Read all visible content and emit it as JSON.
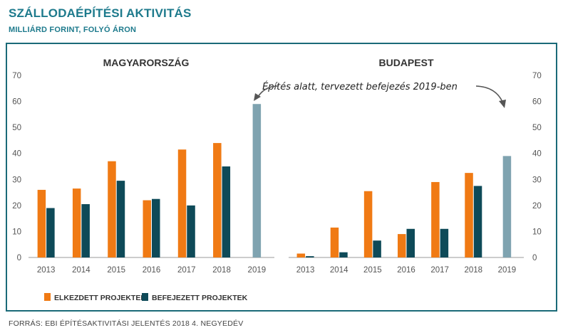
{
  "header": {
    "title": "SZÁLLODAÉPÍTÉSI AKTIVITÁS",
    "subtitle": "MILLIÁRD FORINT, FOLYÓ ÁRON"
  },
  "source": "FORRÁS: EBI ÉPÍTÉSAKTIVITÁSI JELENTÉS 2018 4. NEGYEDÉV",
  "annotation": "Építés alatt, tervezett befejezés 2019-ben",
  "colors": {
    "started": "#f07a14",
    "completed": "#0e4a58",
    "planned": "#7fa3b0",
    "accent": "#1d7a8c"
  },
  "chart_data": [
    {
      "type": "bar",
      "title": "MAGYARORSZÁG",
      "categories": [
        "2013",
        "2014",
        "2015",
        "2016",
        "2017",
        "2018",
        "2019"
      ],
      "ylim": [
        0,
        70
      ],
      "yticks": [
        "0",
        "10",
        "20",
        "30",
        "40",
        "50",
        "60",
        "70"
      ],
      "axis_side": "left",
      "series": [
        {
          "name": "ELKEZDETT PROJEKTEK",
          "values": [
            26,
            26.5,
            37,
            22,
            41.5,
            44,
            null
          ]
        },
        {
          "name": "BEFEJEZETT PROJEKTEK",
          "values": [
            19,
            20.5,
            29.5,
            22.5,
            20,
            35,
            null
          ]
        },
        {
          "name": "",
          "values": [
            null,
            null,
            null,
            null,
            null,
            null,
            59
          ]
        }
      ]
    },
    {
      "type": "bar",
      "title": "BUDAPEST",
      "categories": [
        "2013",
        "2014",
        "2015",
        "2016",
        "2017",
        "2018",
        "2019"
      ],
      "ylim": [
        0,
        70
      ],
      "yticks": [
        "0",
        "10",
        "20",
        "30",
        "40",
        "50",
        "60",
        "70"
      ],
      "axis_side": "right",
      "series": [
        {
          "name": "ELKEZDETT PROJEKTEK",
          "values": [
            1.5,
            11.5,
            25.5,
            9,
            29,
            32.5,
            null
          ]
        },
        {
          "name": "BEFEJEZETT PROJEKTEK",
          "values": [
            0.5,
            2,
            6.5,
            11,
            11,
            27.5,
            null
          ]
        },
        {
          "name": "",
          "values": [
            null,
            null,
            null,
            null,
            null,
            null,
            39
          ]
        }
      ]
    }
  ]
}
